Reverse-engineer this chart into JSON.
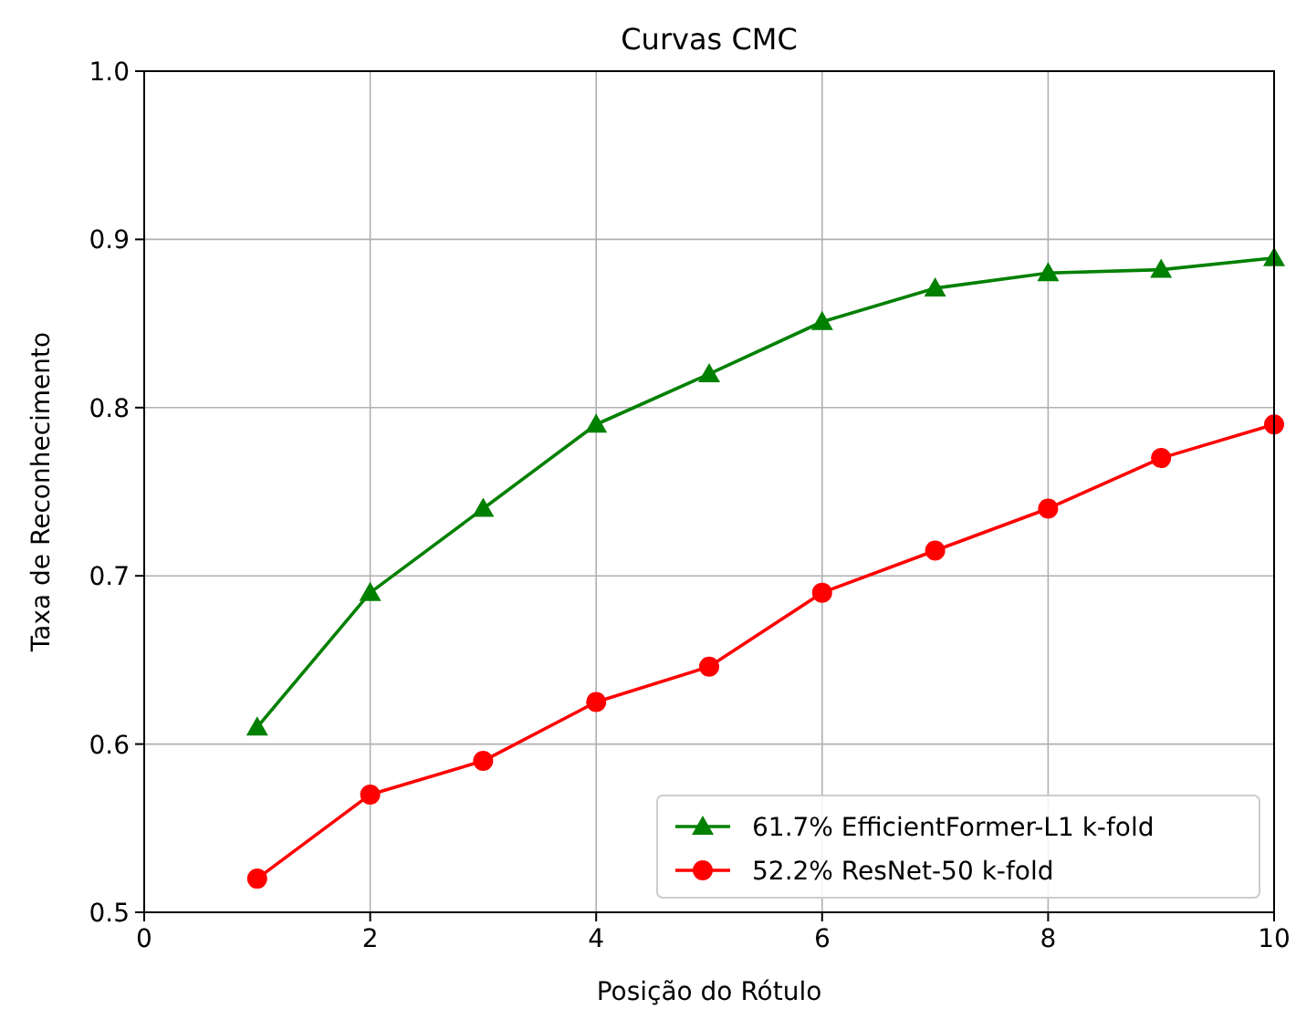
{
  "chart_data": {
    "type": "line",
    "title": "Curvas CMC",
    "xlabel": "Posição do Rótulo",
    "ylabel": "Taxa de Reconhecimento",
    "x": [
      1,
      2,
      3,
      4,
      5,
      6,
      7,
      8,
      9,
      10
    ],
    "series": [
      {
        "name": "61.7% EfficientFormer-L1 k-fold",
        "color": "#008000",
        "marker": "triangle",
        "values": [
          0.61,
          0.69,
          0.74,
          0.79,
          0.82,
          0.851,
          0.871,
          0.88,
          0.882,
          0.889
        ]
      },
      {
        "name": "52.2% ResNet-50 k-fold",
        "color": "#ff0000",
        "marker": "circle",
        "values": [
          0.52,
          0.57,
          0.59,
          0.625,
          0.646,
          0.69,
          0.715,
          0.74,
          0.77,
          0.79
        ]
      }
    ],
    "xlim": [
      0,
      10
    ],
    "xticks": [
      0,
      2,
      4,
      6,
      8,
      10
    ],
    "ylim": [
      0.5,
      1.0
    ],
    "yticks": [
      0.5,
      0.6,
      0.7,
      0.8,
      0.9,
      {
        "value": 1.0,
        "label": "1.0"
      }
    ],
    "grid": true,
    "legend": "bottom right",
    "line_style": "solid"
  }
}
